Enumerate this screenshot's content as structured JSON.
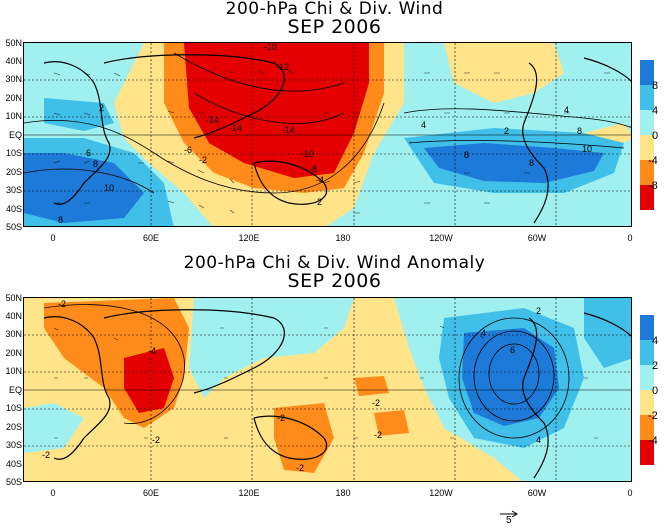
{
  "panels": [
    {
      "title_line1": "200-hPa Chi & Div. Wind",
      "title_line2": "SEP 2006",
      "colorbar_labels": [
        "8",
        "4",
        "0",
        "-4",
        "-8"
      ],
      "contour_labels": [
        "-10",
        "-12",
        "-14",
        "-14",
        "-14",
        "-10",
        "-8",
        "-6",
        "-4",
        "-2",
        "2",
        "4",
        "6",
        "8",
        "10",
        "-6",
        "-8",
        "8",
        "10",
        "4",
        "6",
        "8",
        "10",
        "2",
        "4"
      ]
    },
    {
      "title_line1": "200-hPa Chi & Div. Wind Anomaly",
      "title_line2": "SEP 2006",
      "colorbar_labels": [
        "4",
        "2",
        "0",
        "-2",
        "-4"
      ],
      "contour_labels": [
        "-2",
        "-4",
        "-2",
        "-2",
        "-2",
        "-2",
        "2",
        "4",
        "6",
        "4",
        "-2",
        "2"
      ]
    }
  ],
  "lat_labels": [
    "50N",
    "40N",
    "30N",
    "20N",
    "10N",
    "EQ",
    "10S",
    "20S",
    "30S",
    "40S",
    "50S"
  ],
  "lon_labels": [
    "0",
    "60E",
    "120E",
    "180",
    "120W",
    "60W",
    "0"
  ],
  "reference_vector_label": "5",
  "colors": {
    "strong_neg": "#e40000",
    "neg": "#ff6600",
    "weak_neg": "#f0a030",
    "light_neg": "#ffe48a",
    "light_pos": "#a0f0f0",
    "pos": "#40c0e8",
    "strong_pos": "#1e7ad8"
  }
}
